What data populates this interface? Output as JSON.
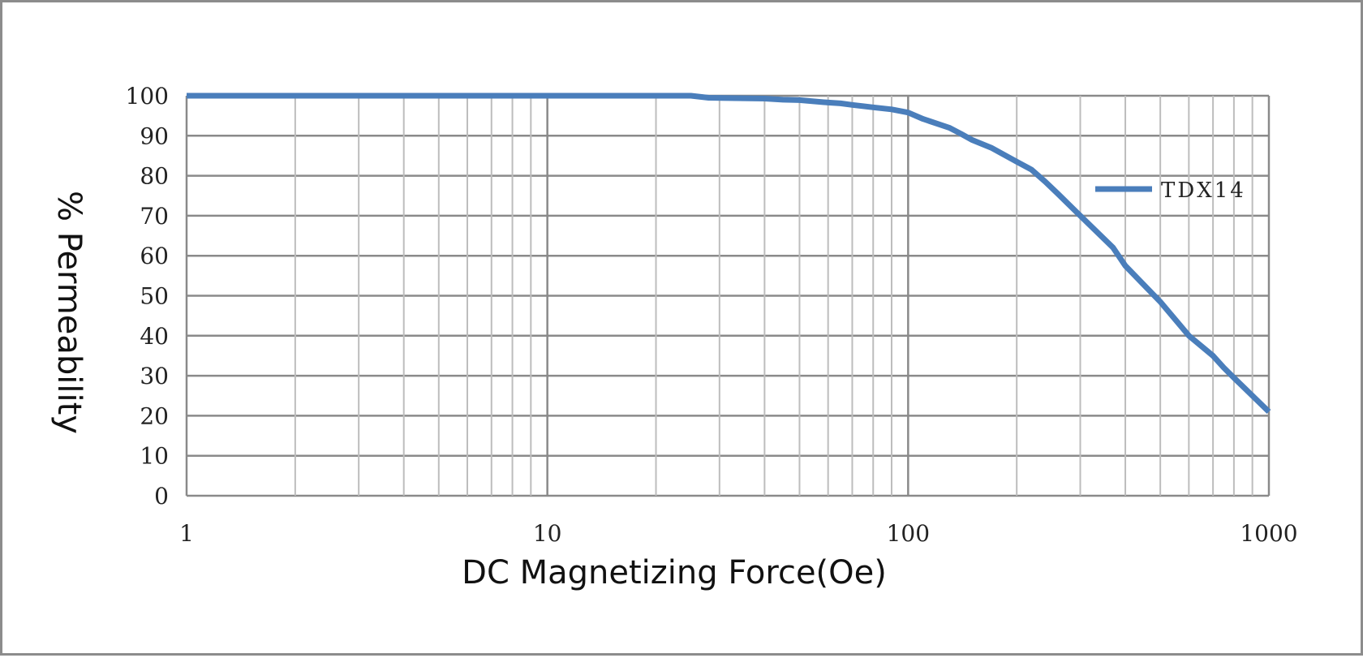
{
  "chart_data": {
    "type": "line",
    "xlabel": "DC Magnetizing Force(Oe)",
    "ylabel": "% Permeability",
    "x_scale": "log",
    "xlim": [
      1,
      1000
    ],
    "ylim": [
      0,
      100
    ],
    "x_ticks": [
      "1",
      "10",
      "100",
      "1000"
    ],
    "y_ticks": [
      "0",
      "10",
      "20",
      "30",
      "40",
      "50",
      "60",
      "70",
      "80",
      "90",
      "100"
    ],
    "grid": true,
    "legend_position": "right",
    "series": [
      {
        "name": "TDX14",
        "color": "#4a7ebb",
        "x": [
          1,
          5,
          10,
          20,
          25,
          28,
          40,
          45,
          50,
          60,
          65,
          70,
          80,
          90,
          100,
          110,
          130,
          140,
          150,
          170,
          200,
          220,
          240,
          260,
          300,
          370,
          400,
          500,
          600,
          700,
          750,
          800,
          900,
          1000
        ],
        "y": [
          100,
          100,
          100,
          100,
          100,
          99.5,
          99.3,
          99,
          98.9,
          98.3,
          98.1,
          97.7,
          97.1,
          96.6,
          95.8,
          94.2,
          92,
          90.5,
          89,
          87,
          83.5,
          81.5,
          78.5,
          75.5,
          70,
          62,
          57.5,
          48.5,
          40,
          35,
          32,
          29.5,
          25,
          21
        ]
      }
    ]
  }
}
